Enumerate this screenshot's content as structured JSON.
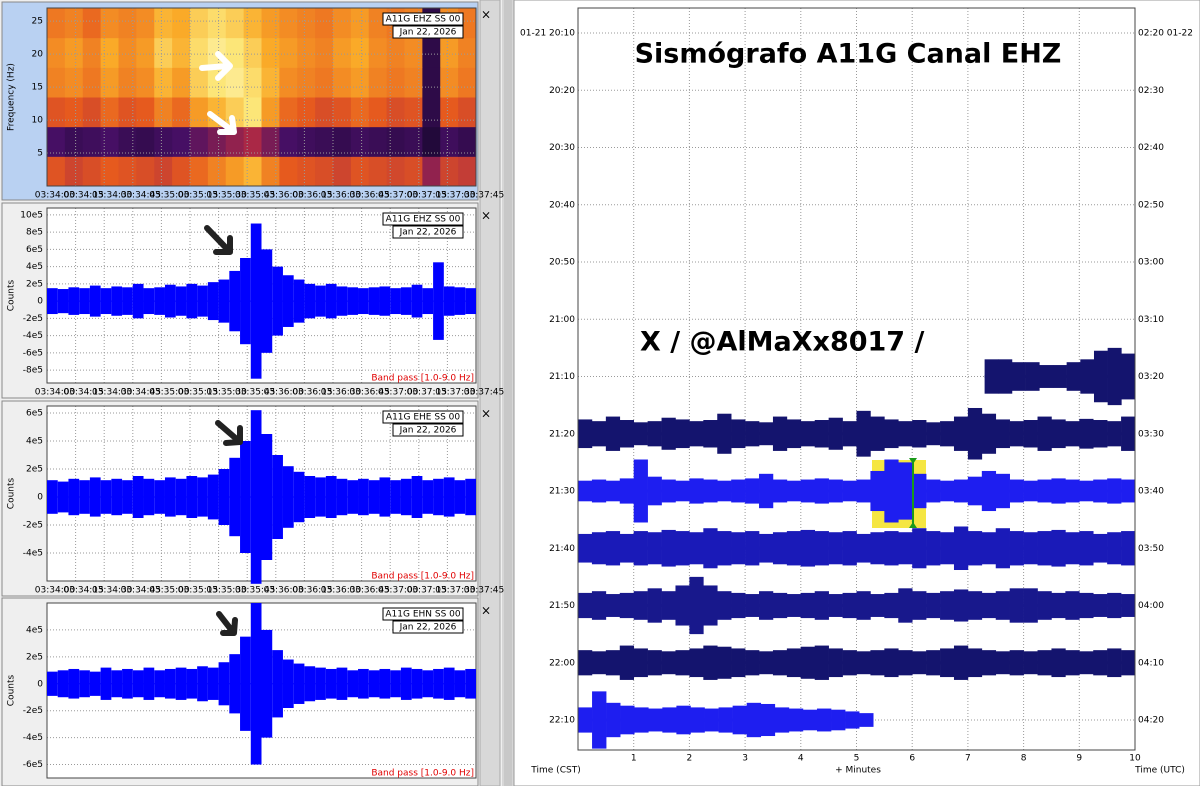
{
  "spectrogram": {
    "station": "A11G EHZ SS 00",
    "date": "Jan 22, 2026",
    "ylabel": "Frequency (Hz)",
    "ylim": [
      0,
      27
    ],
    "yticks": [
      5,
      10,
      15,
      20,
      25
    ],
    "xticks": [
      "03:34:00",
      "03:34:15",
      "03:34:30",
      "03:34:45",
      "03:35:00",
      "03:35:15",
      "03:35:30",
      "03:35:45",
      "03:36:00",
      "03:36:15",
      "03:36:30",
      "03:36:45",
      "03:37:00",
      "03:37:15",
      "03:37:30",
      "03:37:45"
    ],
    "bins": [
      0,
      4.5,
      9,
      13.5,
      18,
      22.5,
      27
    ],
    "intensity": [
      [
        60,
        55,
        58,
        62,
        60,
        58,
        55,
        60,
        65,
        70,
        75,
        80,
        70,
        62,
        60,
        58,
        55,
        60,
        58,
        56,
        58,
        40,
        55,
        52
      ],
      [
        25,
        20,
        22,
        25,
        20,
        18,
        22,
        25,
        30,
        35,
        40,
        45,
        35,
        25,
        22,
        20,
        18,
        22,
        20,
        18,
        20,
        10,
        22,
        18
      ],
      [
        60,
        62,
        58,
        65,
        60,
        62,
        70,
        65,
        75,
        80,
        85,
        90,
        75,
        65,
        62,
        58,
        60,
        65,
        62,
        58,
        60,
        15,
        62,
        58
      ],
      [
        70,
        72,
        68,
        75,
        70,
        72,
        80,
        75,
        85,
        90,
        92,
        88,
        80,
        72,
        70,
        68,
        72,
        75,
        70,
        68,
        70,
        15,
        72,
        68
      ],
      [
        72,
        75,
        70,
        78,
        72,
        75,
        85,
        80,
        88,
        92,
        90,
        85,
        78,
        75,
        72,
        70,
        75,
        78,
        72,
        70,
        72,
        15,
        75,
        70
      ],
      [
        68,
        70,
        65,
        72,
        70,
        72,
        80,
        78,
        85,
        88,
        85,
        80,
        75,
        72,
        70,
        68,
        72,
        75,
        70,
        68,
        70,
        15,
        72,
        68
      ]
    ]
  },
  "waveforms": [
    {
      "station": "A11G EHZ SS 00",
      "date": "Jan 22, 2026",
      "ylabel": "Counts",
      "filter": "Band pass [1.0-9.0 Hz]",
      "color": "#0000ff",
      "ylim": [
        -950000,
        1080000
      ],
      "yticks": [
        {
          "value": 1000000,
          "label": "10e5"
        },
        {
          "value": 800000,
          "label": "8e5"
        },
        {
          "value": 600000,
          "label": "6e5"
        },
        {
          "value": 400000,
          "label": "4e5"
        },
        {
          "value": 200000,
          "label": "2e5"
        },
        0,
        {
          "value": -200000,
          "label": "-2e5"
        },
        {
          "value": -400000,
          "label": "-4e5"
        },
        {
          "value": -600000,
          "label": "-6e5"
        },
        {
          "value": -800000,
          "label": "-8e5"
        }
      ],
      "xticks": [
        "03:34:00",
        "03:34:15",
        "03:34:30",
        "03:34:45",
        "03:35:00",
        "03:35:15",
        "03:35:30",
        "03:35:45",
        "03:36:00",
        "03:36:15",
        "03:36:30",
        "03:36:45",
        "03:37:00",
        "03:37:15",
        "03:37:30",
        "03:37:45"
      ],
      "envelope": [
        150000,
        140000,
        160000,
        150000,
        180000,
        150000,
        170000,
        160000,
        200000,
        150000,
        160000,
        190000,
        170000,
        200000,
        180000,
        220000,
        250000,
        350000,
        500000,
        900000,
        600000,
        400000,
        300000,
        250000,
        200000,
        180000,
        200000,
        170000,
        160000,
        150000,
        160000,
        170000,
        150000,
        160000,
        190000,
        150000,
        450000,
        170000,
        160000,
        150000
      ]
    },
    {
      "station": "A11G EHE SS 00",
      "date": "Jan 22, 2026",
      "ylabel": "Counts",
      "filter": "Band pass [1.0-9.0 Hz]",
      "color": "#0000ff",
      "ylim": [
        -600000,
        650000
      ],
      "yticks": [
        {
          "value": 600000,
          "label": "6e5"
        },
        {
          "value": 400000,
          "label": "4e5"
        },
        {
          "value": 200000,
          "label": "2e5"
        },
        0,
        {
          "value": -200000,
          "label": "-2e5"
        },
        {
          "value": -400000,
          "label": "-4e5"
        }
      ],
      "xticks": [
        "03:34:00",
        "03:34:15",
        "03:34:30",
        "03:34:45",
        "03:35:00",
        "03:35:15",
        "03:35:30",
        "03:35:45",
        "03:36:00",
        "03:36:15",
        "03:36:30",
        "03:36:45",
        "03:37:00",
        "03:37:15",
        "03:37:30",
        "03:37:45"
      ],
      "envelope": [
        120000,
        110000,
        130000,
        120000,
        140000,
        120000,
        130000,
        120000,
        150000,
        130000,
        120000,
        140000,
        130000,
        150000,
        140000,
        160000,
        200000,
        280000,
        400000,
        620000,
        450000,
        300000,
        220000,
        180000,
        150000,
        140000,
        150000,
        130000,
        120000,
        130000,
        120000,
        140000,
        120000,
        130000,
        150000,
        120000,
        130000,
        140000,
        120000,
        130000
      ]
    },
    {
      "station": "A11G EHN SS 00",
      "date": "Jan 22, 2026",
      "ylabel": "Counts",
      "filter": "Band pass [1.0-9.0 Hz]",
      "color": "#0000ff",
      "ylim": [
        -700000,
        600000
      ],
      "yticks": [
        {
          "value": 400000,
          "label": "4e5"
        },
        {
          "value": 200000,
          "label": "2e5"
        },
        0,
        {
          "value": -200000,
          "label": "-2e5"
        },
        {
          "value": -400000,
          "label": "-4e5"
        },
        {
          "value": -600000,
          "label": "-6e5"
        }
      ],
      "envelope": [
        90000,
        100000,
        110000,
        100000,
        90000,
        120000,
        100000,
        110000,
        100000,
        120000,
        100000,
        110000,
        120000,
        110000,
        130000,
        120000,
        160000,
        220000,
        350000,
        600000,
        400000,
        250000,
        180000,
        150000,
        130000,
        120000,
        110000,
        120000,
        100000,
        110000,
        100000,
        110000,
        100000,
        120000,
        110000,
        100000,
        110000,
        120000,
        100000,
        110000
      ]
    }
  ],
  "helicorder": {
    "title": "Sismógrafo A11G Canal EHZ",
    "annotation": "X / @AlMaXx8017 /",
    "xlabel": "+ Minutes",
    "left_label": "Time (CST)",
    "right_label": "Time (UTC)",
    "xlim": [
      0,
      10
    ],
    "xticks": [
      1,
      2,
      3,
      4,
      5,
      6,
      7,
      8,
      9,
      10
    ],
    "rows": [
      {
        "cst": "01-21 20:10",
        "utc": "02:20 01-22"
      },
      {
        "cst": "20:20",
        "utc": "02:30"
      },
      {
        "cst": "20:30",
        "utc": "02:40"
      },
      {
        "cst": "20:40",
        "utc": "02:50"
      },
      {
        "cst": "20:50",
        "utc": "03:00"
      },
      {
        "cst": "21:00",
        "utc": "03:10"
      },
      {
        "cst": "21:10",
        "utc": "03:20",
        "trace": {
          "color": "#14146e",
          "start": 7.3,
          "end": 10,
          "envelope": [
            0.3,
            0.3,
            0.25,
            0.25,
            0.2,
            0.2,
            0.25,
            0.3,
            0.45,
            0.5,
            0.4
          ]
        }
      },
      {
        "cst": "21:20",
        "utc": "03:30",
        "trace": {
          "color": "#14146e",
          "start": 0,
          "end": 10,
          "envelope": [
            0.25,
            0.22,
            0.3,
            0.24,
            0.2,
            0.22,
            0.28,
            0.25,
            0.22,
            0.24,
            0.35,
            0.25,
            0.22,
            0.2,
            0.3,
            0.25,
            0.22,
            0.24,
            0.28,
            0.22,
            0.4,
            0.3,
            0.25,
            0.22,
            0.24,
            0.2,
            0.22,
            0.3,
            0.45,
            0.35,
            0.25,
            0.22,
            0.24,
            0.3,
            0.25,
            0.22,
            0.26,
            0.24,
            0.22,
            0.3
          ]
        }
      },
      {
        "cst": "21:30",
        "utc": "03:40",
        "trace": {
          "color": "#1e1ef0",
          "start": 0,
          "end": 10,
          "envelope": [
            0.18,
            0.2,
            0.18,
            0.22,
            0.55,
            0.25,
            0.2,
            0.18,
            0.22,
            0.2,
            0.18,
            0.2,
            0.22,
            0.3,
            0.2,
            0.18,
            0.2,
            0.22,
            0.2,
            0.18,
            0.2,
            0.35,
            0.55,
            0.5,
            0.3,
            0.2,
            0.18,
            0.2,
            0.25,
            0.35,
            0.3,
            0.2,
            0.18,
            0.2,
            0.22,
            0.2,
            0.18,
            0.2,
            0.22,
            0.2
          ]
        }
      },
      {
        "cst": "21:40",
        "utc": "03:50",
        "trace": {
          "color": "#1a1ab8",
          "start": 0,
          "end": 10,
          "envelope": [
            0.25,
            0.28,
            0.3,
            0.25,
            0.3,
            0.28,
            0.32,
            0.3,
            0.28,
            0.35,
            0.3,
            0.28,
            0.3,
            0.25,
            0.28,
            0.3,
            0.32,
            0.3,
            0.28,
            0.3,
            0.25,
            0.28,
            0.3,
            0.28,
            0.35,
            0.3,
            0.28,
            0.38,
            0.3,
            0.28,
            0.35,
            0.3,
            0.28,
            0.3,
            0.32,
            0.28,
            0.3,
            0.25,
            0.28,
            0.3
          ]
        }
      },
      {
        "cst": "21:50",
        "utc": "04:00",
        "trace": {
          "color": "#18188c",
          "start": 0,
          "end": 10,
          "envelope": [
            0.22,
            0.25,
            0.2,
            0.22,
            0.25,
            0.3,
            0.25,
            0.35,
            0.5,
            0.35,
            0.25,
            0.22,
            0.2,
            0.25,
            0.22,
            0.2,
            0.22,
            0.25,
            0.2,
            0.22,
            0.25,
            0.2,
            0.22,
            0.3,
            0.25,
            0.22,
            0.25,
            0.28,
            0.25,
            0.22,
            0.25,
            0.3,
            0.3,
            0.25,
            0.22,
            0.25,
            0.22,
            0.2,
            0.22,
            0.2
          ]
        }
      },
      {
        "cst": "22:00",
        "utc": "04:10",
        "trace": {
          "color": "#14146e",
          "start": 0,
          "end": 10,
          "envelope": [
            0.22,
            0.2,
            0.22,
            0.3,
            0.25,
            0.22,
            0.2,
            0.22,
            0.25,
            0.3,
            0.28,
            0.25,
            0.22,
            0.2,
            0.22,
            0.25,
            0.28,
            0.3,
            0.25,
            0.22,
            0.2,
            0.22,
            0.25,
            0.22,
            0.2,
            0.22,
            0.25,
            0.3,
            0.25,
            0.22,
            0.2,
            0.22,
            0.2,
            0.22,
            0.25,
            0.22,
            0.2,
            0.22,
            0.25,
            0.22
          ]
        }
      },
      {
        "cst": "22:10",
        "utc": "04:20",
        "trace": {
          "color": "#1e1ef0",
          "start": 0,
          "end": 5.3,
          "envelope": [
            0.22,
            0.5,
            0.3,
            0.25,
            0.22,
            0.2,
            0.22,
            0.25,
            0.22,
            0.2,
            0.22,
            0.25,
            0.3,
            0.28,
            0.22,
            0.2,
            0.18,
            0.2,
            0.18,
            0.15,
            0.12
          ]
        }
      }
    ]
  }
}
